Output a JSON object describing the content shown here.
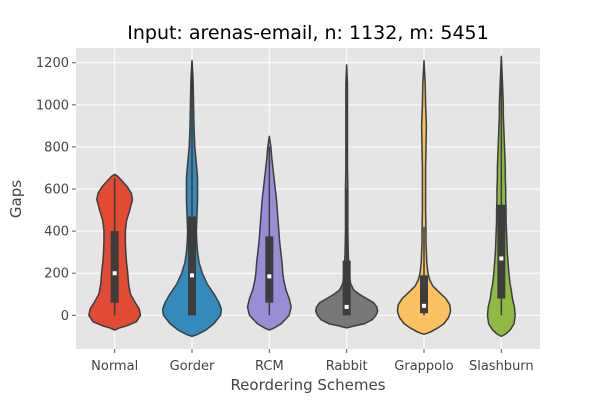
{
  "chart_data": {
    "type": "violin",
    "title": "Input: arenas-email, n: 1132, m: 5451",
    "xlabel": "Reordering Schemes",
    "ylabel": "Gaps",
    "ylim": [
      -160,
      1270
    ],
    "yticks": [
      0,
      200,
      400,
      600,
      800,
      1000,
      1200
    ],
    "grid": true,
    "categories": [
      "Normal",
      "Gorder",
      "RCM",
      "Rabbit",
      "Grappolo",
      "Slashburn"
    ],
    "colors": [
      "#e24a33",
      "#348abd",
      "#988ed5",
      "#777777",
      "#fbc15e",
      "#8eba42"
    ],
    "series": [
      {
        "category": "Normal",
        "q1": 60,
        "median": 200,
        "q3": 400,
        "whisker_low": 0,
        "whisker_high": 650,
        "profile": [
          [
            -70,
            0
          ],
          [
            -60,
            12
          ],
          [
            -50,
            30
          ],
          [
            -30,
            55
          ],
          [
            0,
            65
          ],
          [
            30,
            62
          ],
          [
            60,
            52
          ],
          [
            100,
            40
          ],
          [
            150,
            35
          ],
          [
            200,
            33
          ],
          [
            250,
            30
          ],
          [
            300,
            28
          ],
          [
            350,
            27
          ],
          [
            400,
            27
          ],
          [
            450,
            30
          ],
          [
            500,
            38
          ],
          [
            550,
            45
          ],
          [
            580,
            42
          ],
          [
            610,
            32
          ],
          [
            640,
            18
          ],
          [
            660,
            8
          ],
          [
            670,
            0
          ]
        ]
      },
      {
        "category": "Gorder",
        "q1": 0,
        "median": 190,
        "q3": 470,
        "whisker_low": 0,
        "whisker_high": 1200,
        "profile": [
          [
            -100,
            0
          ],
          [
            -90,
            15
          ],
          [
            -70,
            35
          ],
          [
            -40,
            55
          ],
          [
            0,
            72
          ],
          [
            30,
            74
          ],
          [
            60,
            68
          ],
          [
            100,
            56
          ],
          [
            150,
            38
          ],
          [
            200,
            26
          ],
          [
            250,
            18
          ],
          [
            300,
            14
          ],
          [
            350,
            12
          ],
          [
            400,
            11
          ],
          [
            450,
            12
          ],
          [
            500,
            13
          ],
          [
            550,
            14
          ],
          [
            600,
            14
          ],
          [
            650,
            14
          ],
          [
            700,
            12
          ],
          [
            800,
            7
          ],
          [
            900,
            5
          ],
          [
            1000,
            4
          ],
          [
            1100,
            3
          ],
          [
            1150,
            2
          ],
          [
            1210,
            0
          ]
        ]
      },
      {
        "category": "RCM",
        "q1": 60,
        "median": 185,
        "q3": 375,
        "whisker_low": 0,
        "whisker_high": 800,
        "profile": [
          [
            -70,
            0
          ],
          [
            -60,
            12
          ],
          [
            -40,
            30
          ],
          [
            0,
            50
          ],
          [
            40,
            55
          ],
          [
            80,
            50
          ],
          [
            120,
            42
          ],
          [
            170,
            36
          ],
          [
            200,
            34
          ],
          [
            250,
            32
          ],
          [
            300,
            29
          ],
          [
            350,
            26
          ],
          [
            400,
            24
          ],
          [
            450,
            22
          ],
          [
            500,
            20
          ],
          [
            550,
            18
          ],
          [
            600,
            15
          ],
          [
            650,
            12
          ],
          [
            700,
            9
          ],
          [
            750,
            6
          ],
          [
            800,
            4
          ],
          [
            850,
            0
          ]
        ]
      },
      {
        "category": "Rabbit",
        "q1": 0,
        "median": 40,
        "q3": 260,
        "whisker_low": 0,
        "whisker_high": 600,
        "profile": [
          [
            -60,
            0
          ],
          [
            -50,
            20
          ],
          [
            -40,
            45
          ],
          [
            -20,
            65
          ],
          [
            0,
            74
          ],
          [
            20,
            78
          ],
          [
            40,
            76
          ],
          [
            60,
            68
          ],
          [
            80,
            50
          ],
          [
            100,
            32
          ],
          [
            120,
            18
          ],
          [
            150,
            10
          ],
          [
            200,
            6
          ],
          [
            250,
            5
          ],
          [
            300,
            4
          ],
          [
            400,
            3
          ],
          [
            500,
            3
          ],
          [
            600,
            3
          ],
          [
            700,
            2
          ],
          [
            800,
            2
          ],
          [
            900,
            2
          ],
          [
            1000,
            2
          ],
          [
            1100,
            2
          ],
          [
            1190,
            0
          ]
        ]
      },
      {
        "category": "Grappolo",
        "q1": 10,
        "median": 45,
        "q3": 190,
        "whisker_low": 0,
        "whisker_high": 420,
        "profile": [
          [
            -90,
            0
          ],
          [
            -80,
            15
          ],
          [
            -60,
            35
          ],
          [
            -40,
            50
          ],
          [
            -10,
            62
          ],
          [
            20,
            67
          ],
          [
            50,
            65
          ],
          [
            80,
            55
          ],
          [
            110,
            38
          ],
          [
            140,
            22
          ],
          [
            170,
            14
          ],
          [
            200,
            10
          ],
          [
            250,
            7
          ],
          [
            300,
            6
          ],
          [
            350,
            5
          ],
          [
            400,
            5
          ],
          [
            500,
            4
          ],
          [
            600,
            4
          ],
          [
            700,
            4
          ],
          [
            800,
            5
          ],
          [
            900,
            6
          ],
          [
            1000,
            4
          ],
          [
            1100,
            3
          ],
          [
            1210,
            0
          ]
        ]
      },
      {
        "category": "Slashburn",
        "q1": 80,
        "median": 270,
        "q3": 525,
        "whisker_low": 0,
        "whisker_high": 1140,
        "profile": [
          [
            -100,
            0
          ],
          [
            -90,
            10
          ],
          [
            -70,
            22
          ],
          [
            -40,
            32
          ],
          [
            0,
            35
          ],
          [
            40,
            33
          ],
          [
            80,
            28
          ],
          [
            120,
            25
          ],
          [
            150,
            22
          ],
          [
            200,
            19
          ],
          [
            250,
            17
          ],
          [
            300,
            15
          ],
          [
            350,
            14
          ],
          [
            400,
            13
          ],
          [
            450,
            12
          ],
          [
            500,
            12
          ],
          [
            550,
            11
          ],
          [
            600,
            11
          ],
          [
            650,
            10
          ],
          [
            700,
            10
          ],
          [
            750,
            9
          ],
          [
            800,
            8
          ],
          [
            850,
            7
          ],
          [
            900,
            6
          ],
          [
            950,
            5
          ],
          [
            1000,
            5
          ],
          [
            1100,
            3
          ],
          [
            1230,
            0
          ]
        ]
      }
    ]
  }
}
